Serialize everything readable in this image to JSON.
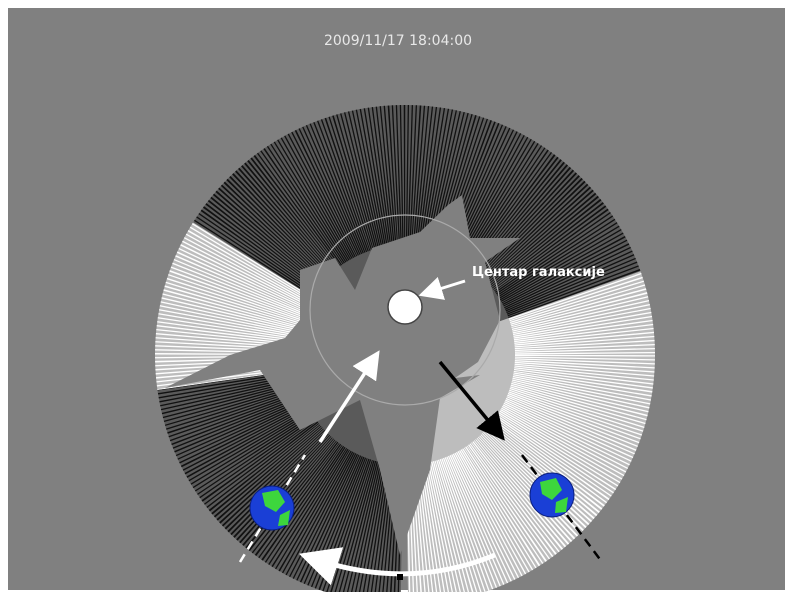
{
  "timestamp": "2009/11/17 18:04:00",
  "label": "Центар галаксије"
}
